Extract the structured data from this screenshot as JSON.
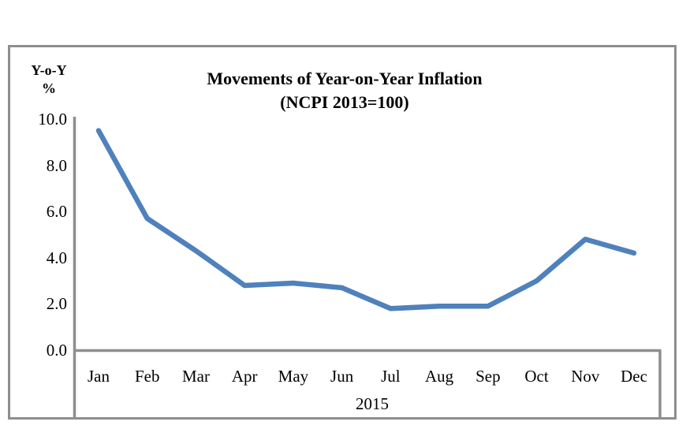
{
  "window": {
    "background_color": "#ffffff",
    "frame_color": "#8e8e8e"
  },
  "chart_data": {
    "type": "line",
    "title_line1": "Movements of Year-on-Year Inflation",
    "title_line2": "(NCPI 2013=100)",
    "y_axis_title_line1": "Y-o-Y",
    "y_axis_title_line2": "%",
    "x_axis_title": "2015",
    "categories": [
      "Jan",
      "Feb",
      "Mar",
      "Apr",
      "May",
      "Jun",
      "Jul",
      "Aug",
      "Sep",
      "Oct",
      "Nov",
      "Dec"
    ],
    "values": [
      9.5,
      5.7,
      4.3,
      2.8,
      2.9,
      2.7,
      1.8,
      1.9,
      1.9,
      3.0,
      4.8,
      4.2
    ],
    "ylim": [
      0.0,
      10.0
    ],
    "ytick_values": [
      10.0,
      8.0,
      6.0,
      4.0,
      2.0,
      0.0
    ],
    "ytick_labels": [
      "10.0",
      "8.0",
      "6.0",
      "4.0",
      "2.0",
      "0.0"
    ],
    "grid": "off",
    "legend": "none",
    "line_color": "#4F81BD",
    "axis_color": "#8e8e8e",
    "text_color": "#000000"
  }
}
